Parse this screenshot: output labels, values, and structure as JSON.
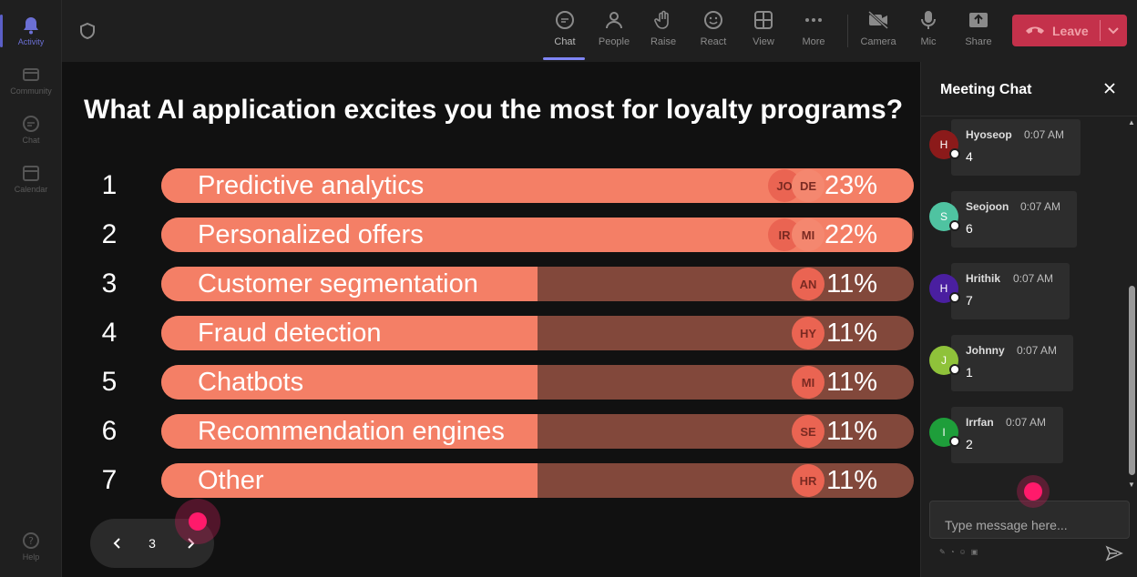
{
  "rail": {
    "items": [
      {
        "label": "Activity",
        "icon": "bell-icon"
      },
      {
        "label": "Community",
        "icon": "community-icon"
      },
      {
        "label": "Chat",
        "icon": "chat-icon"
      },
      {
        "label": "Calendar",
        "icon": "calendar-icon"
      }
    ],
    "help": {
      "label": "Help",
      "icon": "help-icon"
    }
  },
  "toolbar": {
    "items": [
      {
        "label": "Chat",
        "icon": "chat-icon",
        "active": true
      },
      {
        "label": "People",
        "icon": "people-icon"
      },
      {
        "label": "Raise",
        "icon": "hand-icon"
      },
      {
        "label": "React",
        "icon": "smiley-icon"
      },
      {
        "label": "View",
        "icon": "grid-icon"
      },
      {
        "label": "More",
        "icon": "more-icon"
      },
      {
        "label": "Camera",
        "icon": "camera-off-icon"
      },
      {
        "label": "Mic",
        "icon": "mic-icon"
      },
      {
        "label": "Share",
        "icon": "share-icon"
      }
    ],
    "leave_label": "Leave",
    "leave_color": "#c4314b"
  },
  "poll": {
    "title": "What AI application excites you the most for loyalty programs?",
    "rows": [
      {
        "rank": "1",
        "label": "Predictive analytics",
        "percent": "23%",
        "fill": 1.0,
        "avatars": [
          "JO",
          "DE"
        ]
      },
      {
        "rank": "2",
        "label": "Personalized offers",
        "percent": "22%",
        "fill": 0.998,
        "avatars": [
          "IR",
          "MI"
        ]
      },
      {
        "rank": "3",
        "label": "Customer segmentation",
        "percent": "11%",
        "fill": 0.5,
        "avatars": [
          "AN"
        ]
      },
      {
        "rank": "4",
        "label": "Fraud detection",
        "percent": "11%",
        "fill": 0.5,
        "avatars": [
          "HY"
        ]
      },
      {
        "rank": "5",
        "label": "Chatbots",
        "percent": "11%",
        "fill": 0.5,
        "avatars": [
          "MI"
        ]
      },
      {
        "rank": "6",
        "label": "Recommendation engines",
        "percent": "11%",
        "fill": 0.5,
        "avatars": [
          "SE"
        ]
      },
      {
        "rank": "7",
        "label": "Other",
        "percent": "11%",
        "fill": 0.5,
        "avatars": [
          "HR"
        ]
      }
    ],
    "bar_color": "#f47f66",
    "track_color": "#82483b",
    "page": "3"
  },
  "chat": {
    "title": "Meeting Chat",
    "messages": [
      {
        "initial": "H",
        "name": "Hyoseop",
        "time": "0:07 AM",
        "text": "4",
        "color": "#8b1a1a"
      },
      {
        "initial": "S",
        "name": "Seojoon",
        "time": "0:07 AM",
        "text": "6",
        "color": "#4fc3a1"
      },
      {
        "initial": "H",
        "name": "Hrithik",
        "time": "0:07 AM",
        "text": "7",
        "color": "#4a1fa0"
      },
      {
        "initial": "J",
        "name": "Johnny",
        "time": "0:07 AM",
        "text": "1",
        "color": "#8fc23a"
      },
      {
        "initial": "I",
        "name": "Irrfan",
        "time": "0:07 AM",
        "text": "2",
        "color": "#1e9e3a"
      }
    ],
    "input_placeholder": "Type message here..."
  }
}
